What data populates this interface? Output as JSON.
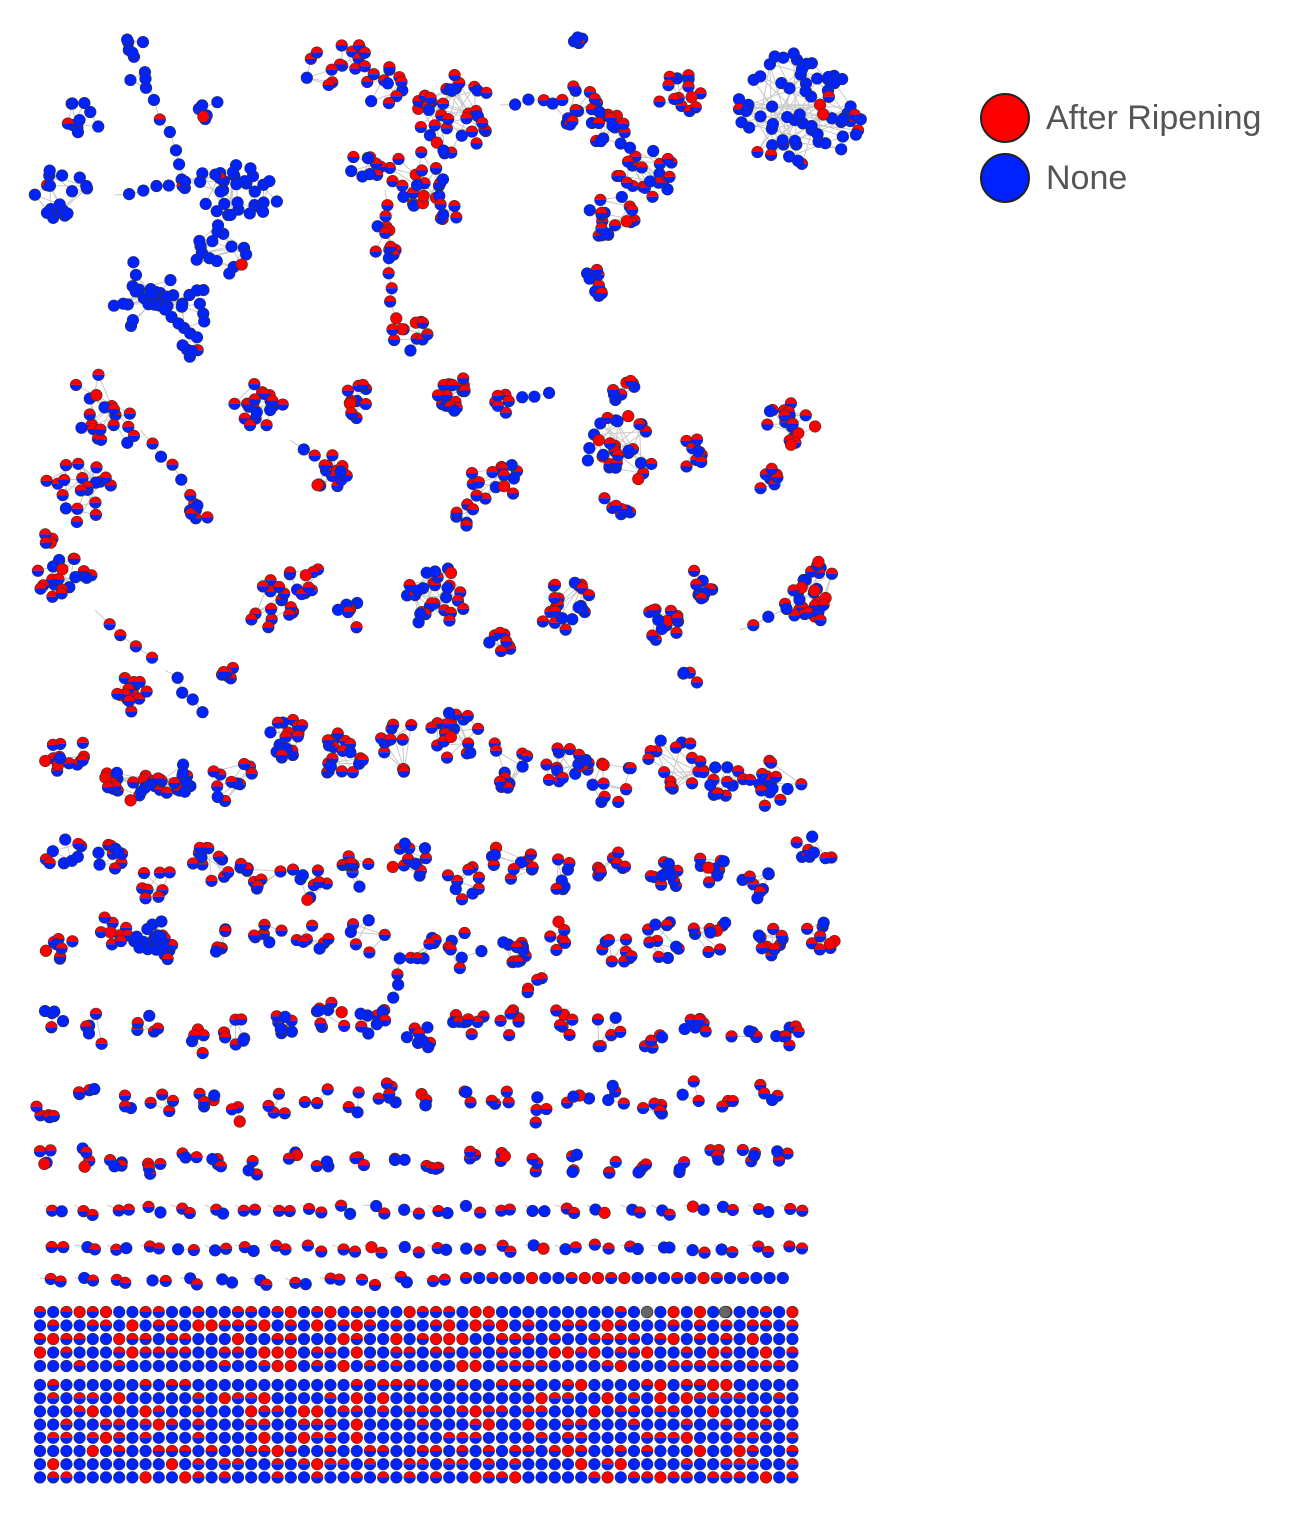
{
  "legend": {
    "items": [
      {
        "label": "After Ripening",
        "color": "#ff0000"
      },
      {
        "label": "None",
        "color": "#0022ff"
      }
    ]
  },
  "colors": {
    "after_ripening": "#ff0000",
    "none": "#0022ff",
    "unassigned": "#666666",
    "edge": "#c8c8c8",
    "node_border": "#333333"
  }
}
